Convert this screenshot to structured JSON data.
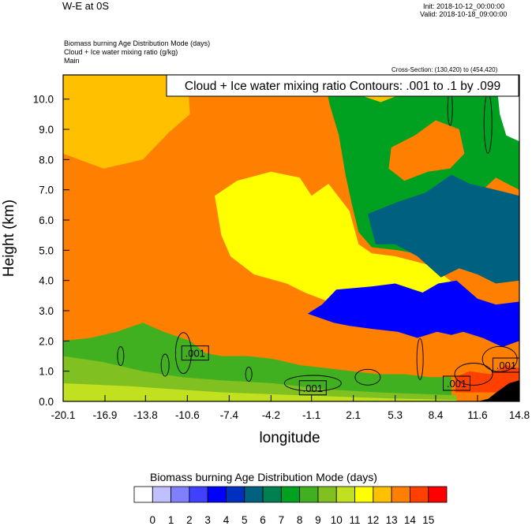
{
  "header": {
    "title": "W-E at 0S",
    "init": "Init: 2018-10-12_00:00:00",
    "valid": "Valid: 2018-10-18_09:00:00",
    "fields": [
      "Biomass burning Age Distribution Mode   (days)",
      "Cloud + Ice water mixing ratio   (g/kg)",
      "Main"
    ],
    "cross_section": "Cross-Section: (130,420) to (454,420)"
  },
  "chart_data": {
    "type": "heatmap",
    "contour_label": "Cloud + Ice water mixing ratio Contours: .001 to .1 by .099",
    "xlabel": "longitude",
    "ylabel": "Height (km)",
    "xlim": [
      -20.1,
      14.8
    ],
    "ylim": [
      0.0,
      10.8
    ],
    "x_ticks": [
      "-20.1",
      "-16.9",
      "-13.8",
      "-10.6",
      "-7.4",
      "-4.2",
      "-1.1",
      "2.1",
      "5.3",
      "8.4",
      "11.6",
      "14.8"
    ],
    "y_ticks": [
      "0.0",
      "1.0",
      "2.0",
      "3.0",
      "4.0",
      "5.0",
      "6.0",
      "7.0",
      "8.0",
      "9.0",
      "10.0"
    ],
    "contour_values": [
      ".001",
      ".001",
      ".001",
      ".001"
    ],
    "colorbar": {
      "title": "Biomass burning Age Distribution Mode  (days)",
      "labels": [
        "0",
        "1",
        "2",
        "3",
        "4",
        "5",
        "6",
        "7",
        "8",
        "9",
        "10",
        "11",
        "12",
        "13",
        "14",
        "15"
      ],
      "colors": [
        "#ffffff",
        "#c0c0ff",
        "#8080ff",
        "#4040ff",
        "#0000ff",
        "#0030c0",
        "#006080",
        "#008050",
        "#00a020",
        "#40b020",
        "#80c020",
        "#c0e020",
        "#ffff00",
        "#ffc000",
        "#ff8000",
        "#ff4000",
        "#ff0000"
      ]
    }
  }
}
